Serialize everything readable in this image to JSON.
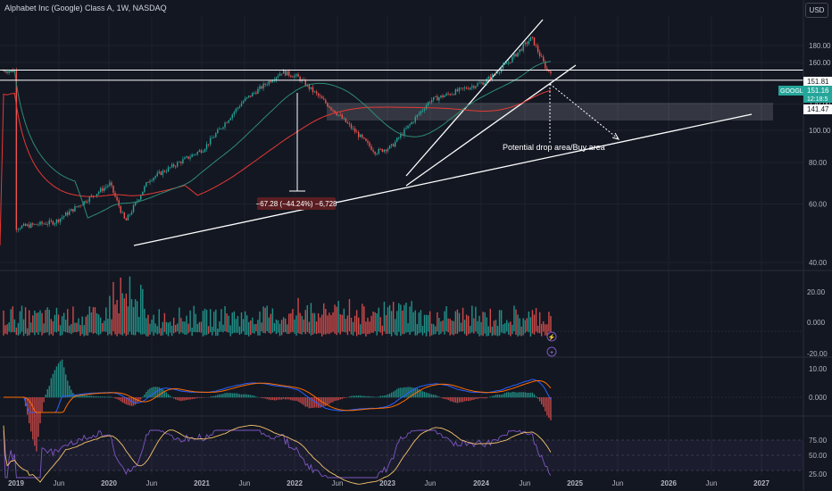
{
  "header": {
    "title": "Alphabet Inc (Google) Class A, 1W, NASDAQ",
    "currency_button": "USD"
  },
  "colors": {
    "background": "#131722",
    "up": "#26a69a",
    "down": "#ef5350",
    "ma_slow": "#e53935",
    "ma_fast": "#2e8b74",
    "macd_line": "#2962ff",
    "signal_line": "#ff6d00",
    "rsi_line": "#7e57c2",
    "rsi_ma": "#f5c26b",
    "price_tag": "#26a69a"
  },
  "price_axis": {
    "ticks": [
      "180.00",
      "160.00",
      "120.00",
      "100.00",
      "80.00",
      "60.00",
      "40.00"
    ],
    "range": [
      40,
      195
    ],
    "scale": "log"
  },
  "price_tags": [
    {
      "label": "151.81",
      "style": "level"
    },
    {
      "label": "151.16",
      "style": "symbol",
      "symbol": "GOOGL"
    },
    {
      "label": "12:18:5",
      "style": "countdown"
    },
    {
      "label": "141.47",
      "style": "level"
    }
  ],
  "time_axis": {
    "ticks": [
      "2019",
      "Jun",
      "2020",
      "Jun",
      "2021",
      "Jun",
      "2022",
      "Jun",
      "2023",
      "Jun",
      "2024",
      "Jun",
      "2025",
      "Jun",
      "2026",
      "Jun",
      "2027"
    ]
  },
  "volume_axis": {
    "ticks": [
      "20.00",
      "0.000",
      "-20.00"
    ]
  },
  "macd_axis": {
    "ticks": [
      "10.00",
      "0.000"
    ]
  },
  "rsi_axis": {
    "ticks": [
      "75.00",
      "50.00",
      "25.00"
    ]
  },
  "annotations": {
    "measure_label": "−67.28 (−44.24%) −6,728",
    "zone_label": "Potential drop area/Buy area"
  },
  "pane_buttons": [
    {
      "icon": "gauge-icon",
      "glyph": "⚡"
    },
    {
      "icon": "plus-icon",
      "glyph": "+"
    }
  ],
  "chart_data": {
    "type": "line",
    "title": "Alphabet Inc (Google) Class A, 1W, NASDAQ",
    "x": [
      "2019-01",
      "2019-06",
      "2020-01",
      "2020-03",
      "2020-06",
      "2021-01",
      "2021-06",
      "2021-11",
      "2022-01",
      "2022-06",
      "2022-11",
      "2023-01",
      "2023-06",
      "2024-01",
      "2024-04",
      "2024-07",
      "2024-09"
    ],
    "series": [
      {
        "values": [
          51,
          53,
          69,
          53,
          71,
          88,
          122,
          150,
          145,
          113,
          86,
          89,
          123,
          140,
          160,
          190,
          151.16
        ]
      }
    ],
    "ylim": [
      40,
      195
    ],
    "levels": [
      151.81,
      141.47
    ],
    "zone": [
      107,
      121
    ]
  }
}
